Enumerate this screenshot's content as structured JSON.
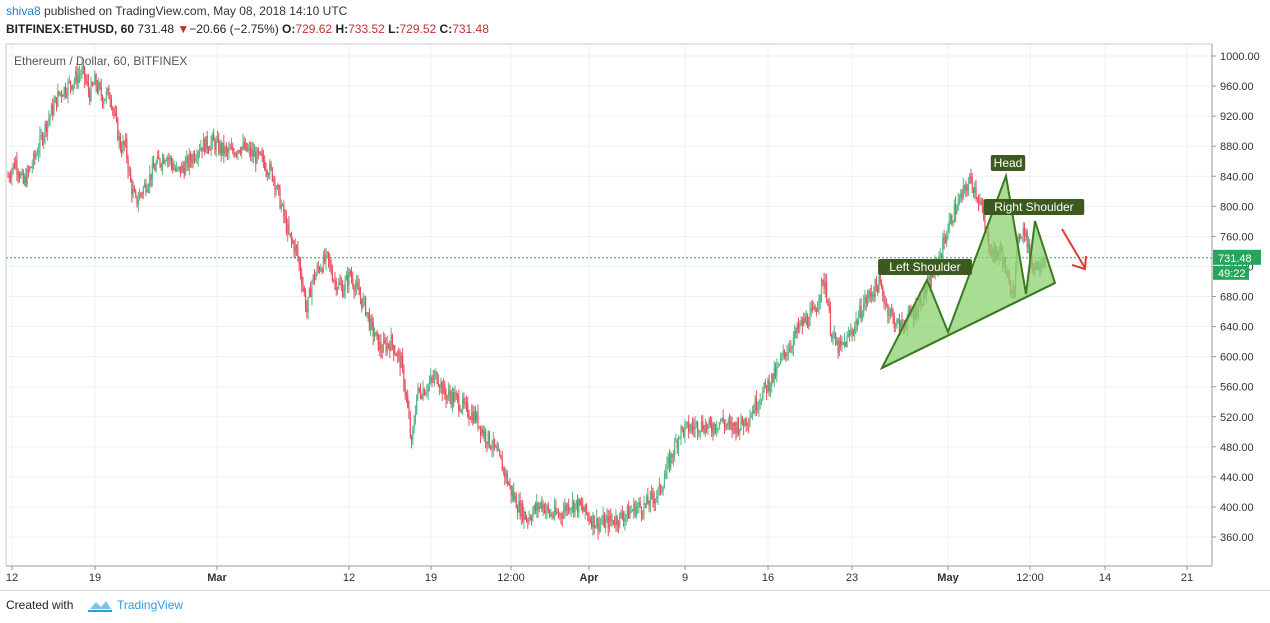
{
  "header": {
    "user": "shiva8",
    "published_text": "published on TradingView.com, May 08, 2018 14:10 UTC",
    "symbol": "BITFINEX:ETHUSD, 60",
    "last": "731.48",
    "change": "−20.66 (−2.75%)",
    "open_label": "O:",
    "open": "729.62",
    "high_label": "H:",
    "high": "733.52",
    "low_label": "L:",
    "low": "729.52",
    "close_label": "C:",
    "close": "731.48"
  },
  "footer": {
    "created_with": "Created with",
    "brand": "TradingView"
  },
  "colors": {
    "up": "#53b987",
    "down": "#eb4d5c",
    "pattern_fill": "#8bd16f",
    "pattern_line": "#3c7a22",
    "label_bg": "#3d5a1e",
    "arrow": "#e53935",
    "price_line": "#26a65b"
  },
  "chart_data": {
    "type": "candlestick",
    "title": "Ethereum / Dollar, 60, BITFINEX",
    "y_ticks": [
      "1000.00",
      "960.00",
      "920.00",
      "880.00",
      "840.00",
      "800.00",
      "760.00",
      "720.00",
      "680.00",
      "640.00",
      "600.00",
      "560.00",
      "520.00",
      "480.00",
      "440.00",
      "400.00",
      "360.00"
    ],
    "x_ticks": [
      "12",
      "19",
      "Mar",
      "12",
      "19",
      "12:00",
      "Apr",
      "9",
      "16",
      "23",
      "May",
      "12:00",
      "14",
      "21"
    ],
    "ylim": [
      330,
      1010
    ],
    "last_price_label": "731.48",
    "countdown_label": "49:22",
    "price_path": [
      [
        0,
        840
      ],
      [
        6,
        860
      ],
      [
        12,
        830
      ],
      [
        20,
        860
      ],
      [
        30,
        910
      ],
      [
        40,
        950
      ],
      [
        50,
        965
      ],
      [
        58,
        980
      ],
      [
        64,
        950
      ],
      [
        68,
        965
      ],
      [
        74,
        945
      ],
      [
        80,
        950
      ],
      [
        88,
        880
      ],
      [
        92,
        880
      ],
      [
        96,
        830
      ],
      [
        100,
        805
      ],
      [
        108,
        830
      ],
      [
        116,
        855
      ],
      [
        124,
        870
      ],
      [
        132,
        845
      ],
      [
        140,
        855
      ],
      [
        150,
        880
      ],
      [
        160,
        885
      ],
      [
        172,
        870
      ],
      [
        182,
        880
      ],
      [
        192,
        868
      ],
      [
        200,
        860
      ],
      [
        208,
        840
      ],
      [
        214,
        800
      ],
      [
        220,
        760
      ],
      [
        226,
        740
      ],
      [
        230,
        705
      ],
      [
        234,
        660
      ],
      [
        238,
        700
      ],
      [
        244,
        720
      ],
      [
        250,
        730
      ],
      [
        256,
        700
      ],
      [
        262,
        690
      ],
      [
        268,
        710
      ],
      [
        274,
        685
      ],
      [
        280,
        665
      ],
      [
        284,
        640
      ],
      [
        292,
        610
      ],
      [
        300,
        620
      ],
      [
        308,
        590
      ],
      [
        312,
        545
      ],
      [
        316,
        480
      ],
      [
        320,
        550
      ],
      [
        328,
        560
      ],
      [
        336,
        575
      ],
      [
        342,
        550
      ],
      [
        350,
        545
      ],
      [
        358,
        530
      ],
      [
        366,
        520
      ],
      [
        372,
        500
      ],
      [
        380,
        480
      ],
      [
        388,
        450
      ],
      [
        394,
        420
      ],
      [
        400,
        400
      ],
      [
        406,
        385
      ],
      [
        412,
        395
      ],
      [
        418,
        405
      ],
      [
        424,
        390
      ],
      [
        432,
        390
      ],
      [
        440,
        405
      ],
      [
        448,
        400
      ],
      [
        456,
        385
      ],
      [
        462,
        378
      ],
      [
        470,
        380
      ],
      [
        478,
        385
      ],
      [
        486,
        392
      ],
      [
        492,
        400
      ],
      [
        498,
        400
      ],
      [
        504,
        410
      ],
      [
        510,
        420
      ],
      [
        516,
        450
      ],
      [
        520,
        470
      ],
      [
        526,
        500
      ],
      [
        534,
        505
      ],
      [
        542,
        510
      ],
      [
        550,
        505
      ],
      [
        558,
        515
      ],
      [
        566,
        505
      ],
      [
        574,
        510
      ],
      [
        580,
        520
      ],
      [
        588,
        545
      ],
      [
        596,
        565
      ],
      [
        602,
        580
      ],
      [
        608,
        605
      ],
      [
        614,
        620
      ],
      [
        620,
        640
      ],
      [
        626,
        650
      ],
      [
        632,
        660
      ],
      [
        636,
        690
      ],
      [
        640,
        700
      ],
      [
        644,
        640
      ],
      [
        648,
        615
      ],
      [
        652,
        610
      ],
      [
        658,
        625
      ],
      [
        664,
        645
      ],
      [
        670,
        670
      ],
      [
        676,
        685
      ],
      [
        682,
        698
      ],
      [
        688,
        668
      ],
      [
        694,
        648
      ],
      [
        698,
        638
      ],
      [
        704,
        650
      ],
      [
        710,
        660
      ],
      [
        716,
        680
      ],
      [
        722,
        700
      ],
      [
        728,
        725
      ],
      [
        734,
        760
      ],
      [
        740,
        790
      ],
      [
        746,
        810
      ],
      [
        750,
        825
      ],
      [
        754,
        835
      ],
      [
        758,
        820
      ],
      [
        762,
        800
      ],
      [
        766,
        760
      ],
      [
        772,
        735
      ],
      [
        778,
        740
      ],
      [
        784,
        690
      ],
      [
        788,
        700
      ],
      [
        792,
        765
      ],
      [
        796,
        770
      ],
      [
        800,
        730
      ],
      [
        804,
        720
      ],
      [
        808,
        728
      ],
      [
        812,
        731.48
      ]
    ],
    "path_x_range": [
      0,
      812
    ],
    "pattern": {
      "labels": [
        "Left Shoulder",
        "Head",
        "Right Shoulder"
      ]
    }
  }
}
